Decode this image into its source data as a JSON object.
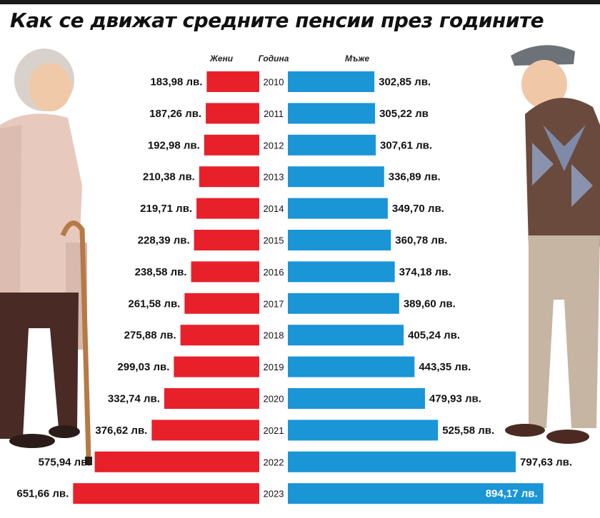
{
  "title": "Как се движат средните пенсии през годините",
  "headers": {
    "women": "Жени",
    "year": "Година",
    "men": "Мъже"
  },
  "colors": {
    "women": "#e8202a",
    "men": "#1a95d6"
  },
  "chart_data": {
    "type": "bar",
    "orientation": "horizontal-butterfly",
    "categories": [
      "2010",
      "2011",
      "2012",
      "2013",
      "2014",
      "2015",
      "2016",
      "2017",
      "2018",
      "2019",
      "2020",
      "2021",
      "2022",
      "2023"
    ],
    "series": [
      {
        "name": "Жени",
        "values": [
          183.98,
          187.26,
          192.98,
          210.38,
          219.71,
          228.39,
          238.58,
          261.58,
          275.88,
          299.03,
          332.74,
          376.62,
          575.94,
          651.66
        ]
      },
      {
        "name": "Мъже",
        "values": [
          302.85,
          305.22,
          307.61,
          336.89,
          349.7,
          360.78,
          374.18,
          389.6,
          405.24,
          443.35,
          479.93,
          525.58,
          797.63,
          894.17
        ]
      }
    ],
    "data_labels": {
      "women": [
        "183,98 лв.",
        "187,26 лв.",
        "192,98 лв.",
        "210,38 лв.",
        "219,71 лв.",
        "228,39 лв.",
        "238,58 лв.",
        "261,58 лв.",
        "275,88 лв.",
        "299,03 лв.",
        "332,74 лв.",
        "376,62 лв.",
        "575,94 лв.",
        "651,66 лв."
      ],
      "men": [
        "302,85 лв.",
        "305,22 лв",
        "307,61 лв.",
        "336,89 лв.",
        "349,70 лв.",
        "360,78 лв.",
        "374,18 лв.",
        "389,60 лв.",
        "405,24 лв.",
        "443,35 лв.",
        "479,93 лв.",
        "525,58 лв.",
        "797,63 лв.",
        "894,17 лв."
      ]
    }
  }
}
